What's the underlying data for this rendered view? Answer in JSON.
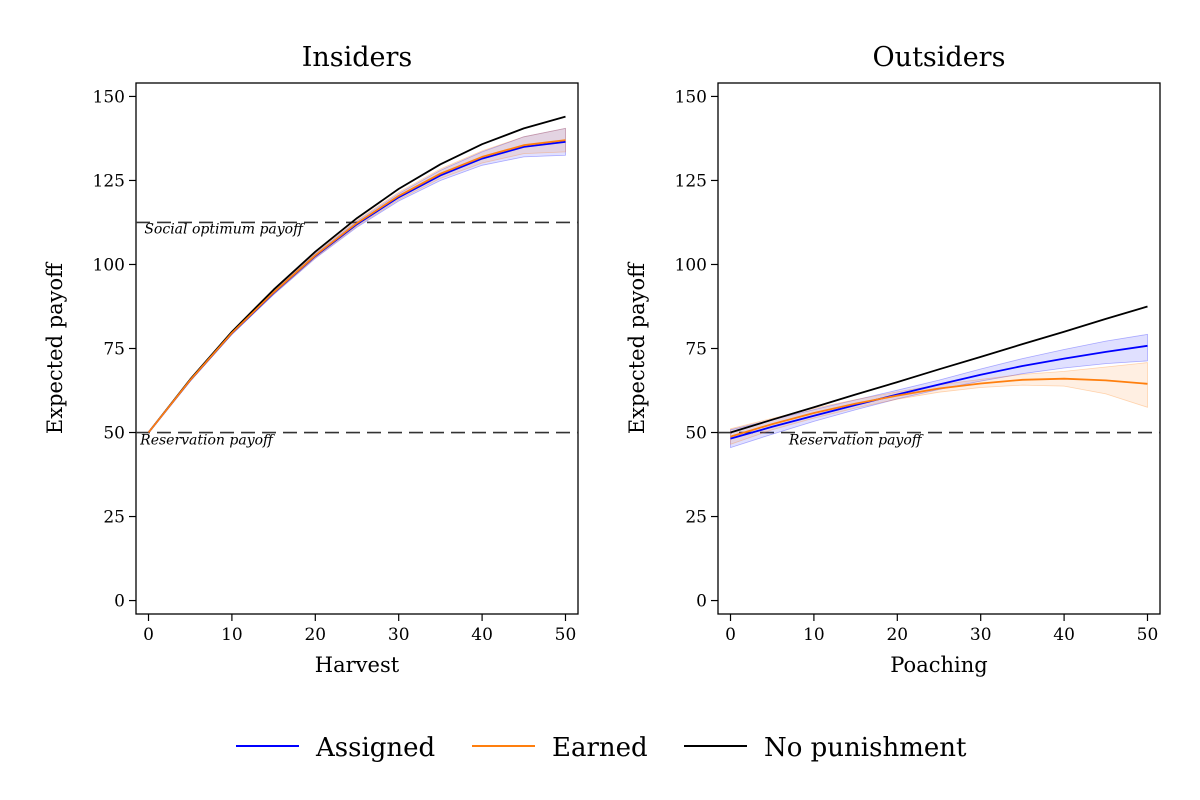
{
  "legend": {
    "placement": "bottom",
    "items": [
      {
        "label": "Assigned",
        "color": "#0000ff"
      },
      {
        "label": "Earned",
        "color": "#ff7f0e"
      },
      {
        "label": "No punishment",
        "color": "#000000"
      }
    ]
  },
  "chart_data": [
    {
      "type": "line",
      "title": "Insiders",
      "xlabel": "Harvest",
      "ylabel": "Expected payoff",
      "xlim": [
        -1.5,
        51.5
      ],
      "ylim": [
        -4,
        154
      ],
      "xticks": [
        0,
        10,
        20,
        30,
        40,
        50
      ],
      "yticks": [
        0,
        25,
        50,
        75,
        100,
        125,
        150
      ],
      "grid": false,
      "reference_lines": [
        {
          "y": 112.5,
          "label": "Social optimum payoff",
          "label_x": -0.5,
          "label_y": 109.2
        },
        {
          "y": 50,
          "label": "Reservation payoff",
          "label_x": -1,
          "label_y": 46.5
        }
      ],
      "x": [
        0,
        5,
        10,
        15,
        20,
        25,
        30,
        35,
        40,
        45,
        50
      ],
      "series": [
        {
          "name": "Assigned",
          "color": "#0000ff",
          "values": [
            50,
            65.5,
            79.5,
            91.5,
            102.5,
            112,
            120,
            126.5,
            131.5,
            135,
            136.5
          ],
          "band_lower": [
            50,
            65.3,
            79.2,
            91,
            101.8,
            111.1,
            118.9,
            125,
            129.5,
            132,
            132.5
          ],
          "band_upper": [
            50,
            65.7,
            79.8,
            92,
            103.2,
            112.9,
            121.1,
            128,
            133.5,
            138,
            140.5
          ]
        },
        {
          "name": "Earned",
          "color": "#ff7f0e",
          "values": [
            50,
            65.6,
            79.6,
            91.7,
            102.7,
            112.3,
            120.4,
            127,
            132,
            135.5,
            137
          ],
          "band_lower": [
            50,
            65.4,
            79.3,
            91.2,
            102,
            111.4,
            119.3,
            125.6,
            130.2,
            133,
            133.5
          ],
          "band_upper": [
            50,
            65.8,
            79.9,
            92.2,
            103.4,
            113.2,
            121.5,
            128.4,
            133.8,
            138,
            140.5
          ]
        },
        {
          "name": "No punishment",
          "color": "#000000",
          "values": [
            50,
            65.8,
            80,
            92.5,
            103.8,
            113.8,
            122.5,
            129.8,
            135.8,
            140.5,
            144
          ]
        }
      ]
    },
    {
      "type": "line",
      "title": "Outsiders",
      "xlabel": "Poaching",
      "ylabel": "Expected payoff",
      "xlim": [
        -1.5,
        51.5
      ],
      "ylim": [
        -4,
        154
      ],
      "xticks": [
        0,
        10,
        20,
        30,
        40,
        50
      ],
      "yticks": [
        0,
        25,
        50,
        75,
        100,
        125,
        150
      ],
      "grid": false,
      "reference_lines": [
        {
          "y": 50,
          "label": "Reservation payoff",
          "label_x": 7,
          "label_y": 46.5
        }
      ],
      "x": [
        0,
        5,
        10,
        15,
        20,
        25,
        30,
        35,
        40,
        45,
        50
      ],
      "series": [
        {
          "name": "Assigned",
          "color": "#0000ff",
          "values": [
            48.2,
            51.7,
            55,
            58.2,
            61.3,
            64.3,
            67.2,
            69.8,
            72,
            74,
            75.8
          ],
          "band_lower": [
            45.5,
            49.5,
            53.3,
            56.8,
            60,
            62.8,
            65.3,
            67.5,
            69.2,
            70.5,
            71.3
          ],
          "band_upper": [
            50.8,
            53.8,
            56.8,
            59.7,
            62.6,
            65.6,
            68.9,
            72,
            74.7,
            77.2,
            79.2
          ]
        },
        {
          "name": "Earned",
          "color": "#ff7f0e",
          "values": [
            48.8,
            52.5,
            55.8,
            58.6,
            61,
            63.1,
            64.6,
            65.7,
            66,
            65.5,
            64.5
          ],
          "band_lower": [
            46.5,
            50.8,
            54.3,
            57.3,
            59.9,
            62,
            63.4,
            64.1,
            63.8,
            61.5,
            57.5
          ],
          "band_upper": [
            51.1,
            54.2,
            57.2,
            59.8,
            62.1,
            64.2,
            65.8,
            67.3,
            68.2,
            69.5,
            70.8
          ]
        },
        {
          "name": "No punishment",
          "color": "#000000",
          "values": [
            50,
            53.8,
            57.5,
            61.3,
            65,
            68.8,
            72.5,
            76.3,
            80,
            83.8,
            87.5
          ]
        }
      ]
    }
  ]
}
